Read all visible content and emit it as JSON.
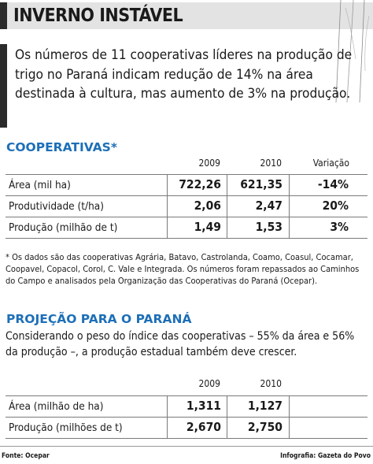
{
  "header": {
    "title": "INVERNO INSTÁVEL"
  },
  "intro": "Os números de 11 cooperativas líderes na produção de trigo no Paraná indicam redução de 14% na área destinada à cultura, mas aumento de 3% na produção.",
  "cooperativas": {
    "title": "COOPERATIVAS*",
    "columns": [
      "2009",
      "2010",
      "Variação"
    ],
    "rows": [
      {
        "label": "Área (mil ha)",
        "v2009": "722,26",
        "v2010": "621,35",
        "variacao": "-14%"
      },
      {
        "label": "Produtividade (t/ha)",
        "v2009": "2,06",
        "v2010": "2,47",
        "variacao": "20%"
      },
      {
        "label": "Produção (milhão de t)",
        "v2009": "1,49",
        "v2010": "1,53",
        "variacao": "3%"
      }
    ],
    "note": "* Os dados são das cooperativas Agrária, Batavo, Castrolanda, Coamo, Coasul, Cocamar, Coopavel, Copacol, Corol, C. Vale e Integrada. Os números foram repassados ao Caminhos do Campo e analisados pela Organização das Cooperativas do Paraná (Ocepar)."
  },
  "projecao": {
    "title": "PROJEÇÃO PARA O PARANÁ",
    "text": "Considerando o peso do índice das cooperativas – 55% da área e 56% da produção –, a produção estadual também deve crescer.",
    "columns": [
      "2009",
      "2010"
    ],
    "rows": [
      {
        "label": "Área (milhão de ha)",
        "v2009": "1,311",
        "v2010": "1,127"
      },
      {
        "label": "Produção (milhões de t)",
        "v2009": "2,670",
        "v2010": "2,750"
      }
    ]
  },
  "footer": {
    "source": "Fonte: Ocepar",
    "credit": "Infografia: Gazeta do Povo"
  },
  "colors": {
    "accent": "#1d6fb8",
    "header_bg": "#e3e3e3",
    "bar": "#2b2b2b"
  }
}
